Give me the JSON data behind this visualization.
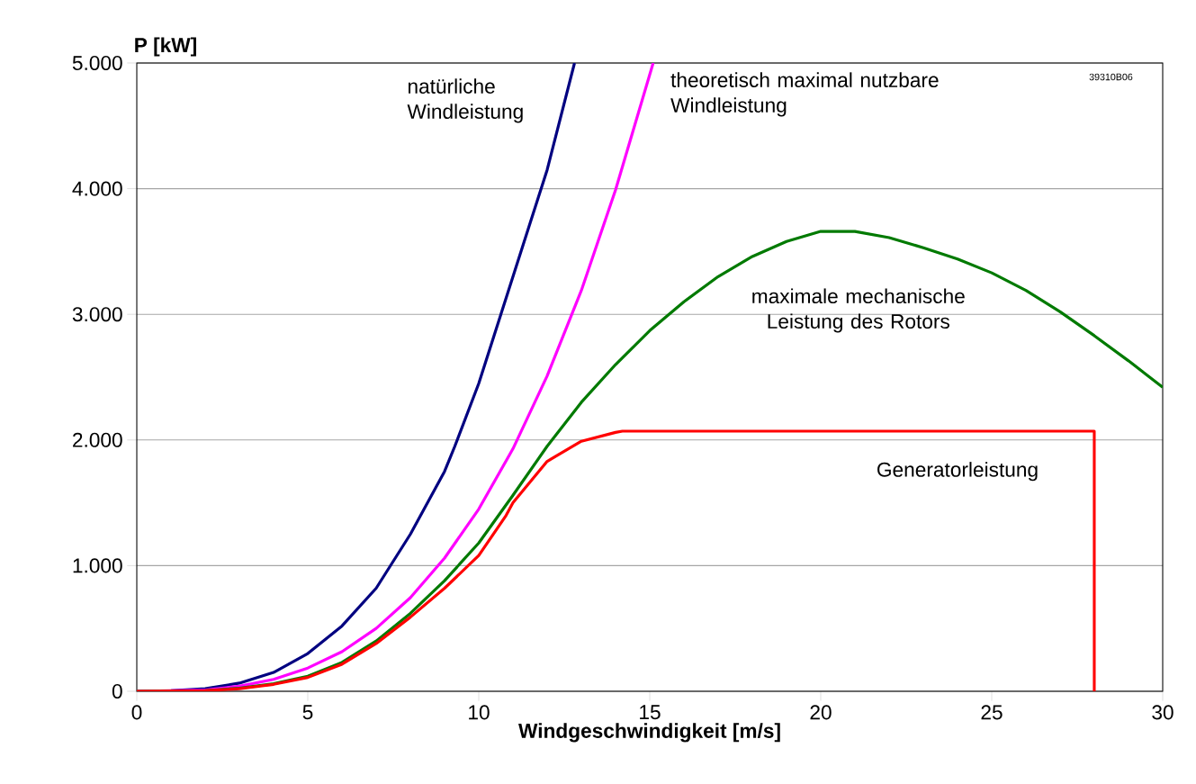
{
  "chart_data": {
    "type": "line",
    "xlabel": "Windgeschwindigkeit [m/s]",
    "ylabel": "P [kW]",
    "xlim": [
      0,
      30
    ],
    "ylim": [
      0,
      5000
    ],
    "xticks": [
      0,
      5,
      10,
      15,
      20,
      25,
      30
    ],
    "yticks": [
      {
        "value": 0,
        "label": "0"
      },
      {
        "value": 1000,
        "label": "1.000"
      },
      {
        "value": 2000,
        "label": "2.000"
      },
      {
        "value": 3000,
        "label": "3.000"
      },
      {
        "value": 4000,
        "label": "4.000"
      },
      {
        "value": 5000,
        "label": "5.000"
      }
    ],
    "grid": "y",
    "annotations": [
      "39310B06"
    ],
    "series": [
      {
        "name": "natürliche Windleistung",
        "color": "#000080",
        "x": [
          0,
          1,
          2,
          3,
          4,
          5,
          6,
          7,
          8,
          9,
          9.3,
          10,
          11,
          12,
          12.8
        ],
        "values": [
          0,
          5,
          20,
          65,
          150,
          300,
          520,
          820,
          1250,
          1750,
          1950,
          2450,
          3300,
          4150,
          5000
        ]
      },
      {
        "name": "theoretisch maximal nutzbare Windleistung",
        "color": "#ff00ff",
        "x": [
          0,
          2,
          3,
          4,
          5,
          6,
          7,
          8,
          9,
          10,
          11,
          12,
          13,
          14,
          15.1
        ],
        "values": [
          0,
          10,
          40,
          95,
          185,
          315,
          500,
          745,
          1060,
          1450,
          1930,
          2510,
          3190,
          3990,
          5000
        ]
      },
      {
        "name": "maximale mechanische Leistung des Rotors",
        "color": "#007a00",
        "x": [
          0,
          2,
          3,
          4,
          5,
          6,
          7,
          8,
          9,
          10,
          11,
          12,
          13,
          14,
          15,
          16,
          17,
          18,
          19,
          20,
          21,
          22,
          23,
          24,
          25,
          26,
          27,
          28,
          29,
          30
        ],
        "values": [
          0,
          5,
          25,
          60,
          120,
          230,
          400,
          620,
          880,
          1180,
          1560,
          1950,
          2300,
          2600,
          2870,
          3100,
          3300,
          3460,
          3580,
          3660,
          3660,
          3610,
          3530,
          3440,
          3330,
          3190,
          3020,
          2830,
          2630,
          2420
        ]
      },
      {
        "name": "Generatorleistung",
        "color": "#ff0000",
        "x": [
          0,
          2,
          3,
          4,
          5,
          6,
          7,
          8,
          9,
          10,
          10.8,
          11,
          12,
          13,
          14,
          14.2,
          28,
          28
        ],
        "values": [
          0,
          5,
          20,
          55,
          110,
          215,
          380,
          590,
          820,
          1080,
          1400,
          1500,
          1830,
          1990,
          2060,
          2070,
          2070,
          0
        ]
      }
    ]
  }
}
